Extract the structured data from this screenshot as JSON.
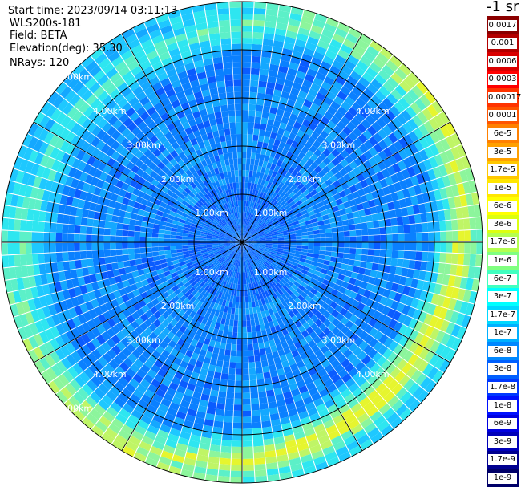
{
  "info": {
    "start_time": "Start time: 2023/09/14 03:11:13",
    "device": "WLS200s-181",
    "field": "Field: BETA",
    "elevation": "Elevation(deg): 35.30",
    "nrays": "NRays: 120"
  },
  "unit": "-1 sr",
  "range_labels": [
    "1.00km",
    "2.00km",
    "3.00km",
    "4.00km",
    "5.00km"
  ],
  "colorbar": {
    "labels": [
      "0.0017",
      "0.001",
      "0.0006",
      "0.0003",
      "0.00017",
      "0.0001",
      "6e-5",
      "3e-5",
      "1.7e-5",
      "1e-5",
      "6e-6",
      "3e-6",
      "1.7e-6",
      "1e-6",
      "6e-7",
      "3e-7",
      "1.7e-7",
      "1e-7",
      "6e-8",
      "3e-8",
      "1.7e-8",
      "1e-8",
      "6e-9",
      "3e-9",
      "1.7e-9",
      "1e-9"
    ],
    "colors": [
      "#8b0000",
      "#b30000",
      "#d90000",
      "#ff0000",
      "#ff3300",
      "#ff5500",
      "#ff8000",
      "#ffa000",
      "#ffc800",
      "#ffe600",
      "#ffff00",
      "#dcff10",
      "#b4ff50",
      "#80ff80",
      "#40ffc0",
      "#00ffff",
      "#00d8ff",
      "#00b0ff",
      "#0088ff",
      "#0060ff",
      "#0038ff",
      "#0010ff",
      "#0000e0",
      "#0000b8",
      "#000090",
      "#000068"
    ]
  },
  "chart_data": {
    "type": "heatmap",
    "projection": "polar-ppi",
    "rays": 120,
    "range_rings_km": [
      1,
      2,
      3,
      4,
      5
    ],
    "max_range_km": 5.0,
    "field": "BETA",
    "unit": "-1 sr",
    "color_scale": "log",
    "value_range": [
      1e-09,
      0.0017
    ]
  }
}
